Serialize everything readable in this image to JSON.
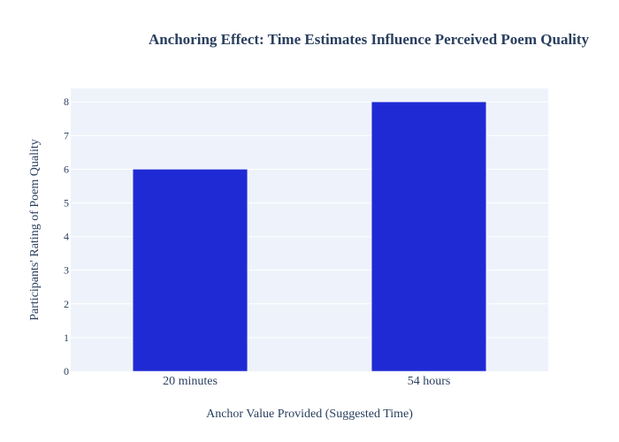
{
  "chart_data": {
    "type": "bar",
    "title": "Anchoring Effect: Time Estimates Influence Perceived Poem Quality",
    "xlabel": "Anchor Value Provided (Suggested Time)",
    "ylabel": "Participants' Rating of Poem Quality",
    "categories": [
      "20 minutes",
      "54 hours"
    ],
    "values": [
      6,
      8
    ],
    "ylim": [
      0,
      8.4
    ],
    "yticks": [
      0,
      1,
      2,
      3,
      4,
      5,
      6,
      7,
      8
    ],
    "grid": true,
    "legend": "none",
    "colors": {
      "bar": "#1f2ad4",
      "plot_background": "#eef3fb",
      "grid": "#ffffff",
      "text": "#2a3f5f"
    }
  }
}
